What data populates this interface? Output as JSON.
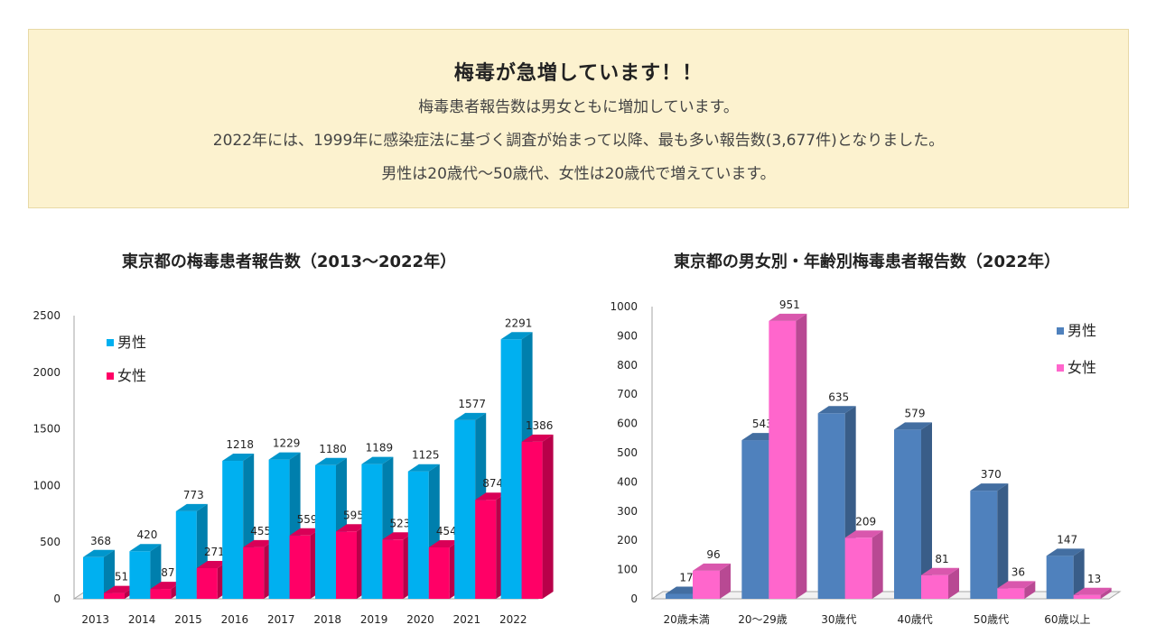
{
  "notice": {
    "heading": "梅毒が急増しています！！",
    "line1": "梅毒患者報告数は男女ともに増加しています。",
    "line2": "2022年には、1999年に感染症法に基づく調査が始まって以降、最も多い報告数(3,677件)となりました。",
    "line3": "男性は20歳代～50歳代、女性は20歳代で増えています。"
  },
  "colors": {
    "notice_bg": "#fcf2cf",
    "chart1_male": "#00b0f0",
    "chart1_female": "#ff0066",
    "chart2_male": "#4f81bd",
    "chart2_female": "#ff66cc"
  },
  "chart_data": [
    {
      "type": "bar",
      "title": "東京都の梅毒患者報告数（2013～2022年）",
      "categories": [
        "2013",
        "2014",
        "2015",
        "2016",
        "2017",
        "2018",
        "2019",
        "2020",
        "2021",
        "2022"
      ],
      "series": [
        {
          "name": "男性",
          "values": [
            368,
            420,
            773,
            1218,
            1229,
            1180,
            1189,
            1125,
            1577,
            2291
          ]
        },
        {
          "name": "女性",
          "values": [
            51,
            87,
            271,
            455,
            559,
            595,
            523,
            454,
            874,
            1386
          ]
        }
      ],
      "y_ticks": [
        "0",
        "500",
        "1000",
        "1500",
        "2000",
        "2500"
      ],
      "ylim": [
        0,
        2500
      ],
      "legend": "top-left",
      "grid": false,
      "style": "3d-column"
    },
    {
      "type": "bar",
      "title": "東京都の男女別・年齢別梅毒患者報告数（2022年）",
      "categories": [
        "20歳未満",
        "20～29歳",
        "30歳代",
        "40歳代",
        "50歳代",
        "60歳以上"
      ],
      "series": [
        {
          "name": "男性",
          "values": [
            17,
            543,
            635,
            579,
            370,
            147
          ]
        },
        {
          "name": "女性",
          "values": [
            96,
            951,
            209,
            81,
            36,
            13
          ]
        }
      ],
      "y_ticks": [
        "0",
        "100",
        "200",
        "300",
        "400",
        "500",
        "600",
        "700",
        "800",
        "900",
        "1000"
      ],
      "ylim": [
        0,
        1000
      ],
      "legend": "top-right",
      "grid": false,
      "style": "3d-column"
    }
  ]
}
